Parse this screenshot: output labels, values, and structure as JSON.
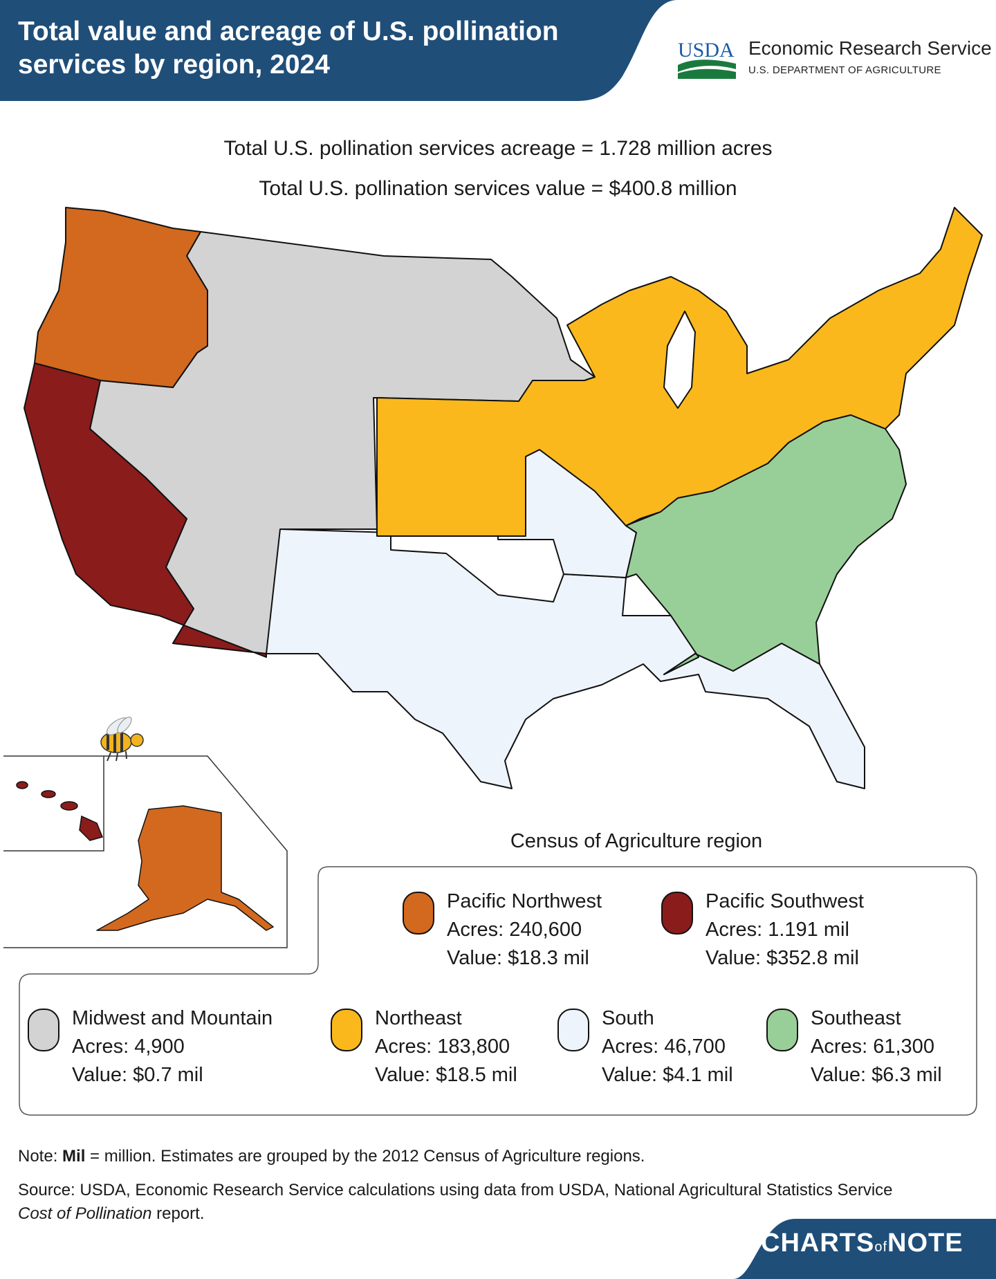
{
  "header": {
    "title": "Total value and acreage of U.S. pollination services by region, 2024",
    "logo_text": "USDA",
    "agency": "Economic Research Service",
    "department": "U.S. DEPARTMENT OF AGRICULTURE"
  },
  "totals": {
    "acreage": "Total U.S. pollination services acreage = 1.728 million acres",
    "value": "Total U.S. pollination services value = $400.8 million"
  },
  "legend": {
    "title": "Census of Agriculture region",
    "items": [
      {
        "region": "Pacific Northwest",
        "acres": "Acres: 240,600",
        "value": "Value: $18.3 mil",
        "color": "#d2691e"
      },
      {
        "region": "Pacific Southwest",
        "acres": "Acres: 1.191 mil",
        "value": "Value: $352.8 mil",
        "color": "#8b1c1c"
      },
      {
        "region": "Midwest and Mountain",
        "acres": "Acres: 4,900",
        "value": "Value: $0.7 mil",
        "color": "#d3d3d3"
      },
      {
        "region": "Northeast",
        "acres": "Acres: 183,800",
        "value": "Value: $18.5 mil",
        "color": "#fbb81c"
      },
      {
        "region": "South",
        "acres": "Acres: 46,700",
        "value": "Value: $4.1 mil",
        "color": "#eef4fb"
      },
      {
        "region": "Southeast",
        "acres": "Acres: 61,300",
        "value": "Value: $6.3 mil",
        "color": "#98cf98"
      }
    ]
  },
  "note": {
    "prefix": "Note: ",
    "bold": "Mil",
    "rest": " = million. Estimates are grouped by the 2012 Census of Agriculture regions."
  },
  "source": {
    "prefix": "Source: USDA, Economic Research Service calculations using data from USDA, National Agricultural Statistics Service ",
    "italic": "Cost of Pollination",
    "suffix": " report."
  },
  "footer": {
    "charts": "CHARTS",
    "of": "of",
    "note": "NOTE"
  },
  "colors": {
    "header_bg": "#1f4e79",
    "border": "#1f4e79"
  }
}
